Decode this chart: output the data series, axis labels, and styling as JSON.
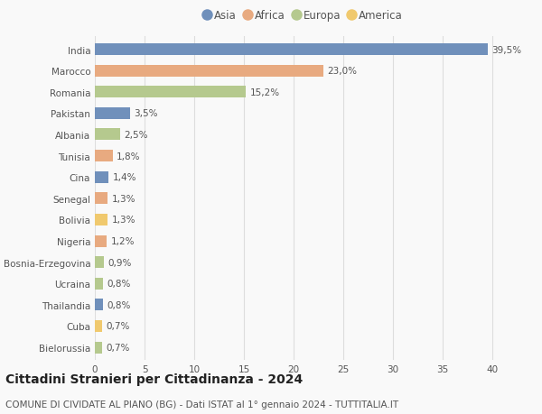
{
  "countries": [
    "India",
    "Marocco",
    "Romania",
    "Pakistan",
    "Albania",
    "Tunisia",
    "Cina",
    "Senegal",
    "Bolivia",
    "Nigeria",
    "Bosnia-Erzegovina",
    "Ucraina",
    "Thailandia",
    "Cuba",
    "Bielorussia"
  ],
  "values": [
    39.5,
    23.0,
    15.2,
    3.5,
    2.5,
    1.8,
    1.4,
    1.3,
    1.3,
    1.2,
    0.9,
    0.8,
    0.8,
    0.7,
    0.7
  ],
  "labels": [
    "39,5%",
    "23,0%",
    "15,2%",
    "3,5%",
    "2,5%",
    "1,8%",
    "1,4%",
    "1,3%",
    "1,3%",
    "1,2%",
    "0,9%",
    "0,8%",
    "0,8%",
    "0,7%",
    "0,7%"
  ],
  "continents": [
    "Asia",
    "Africa",
    "Europa",
    "Asia",
    "Europa",
    "Africa",
    "Asia",
    "Africa",
    "America",
    "Africa",
    "Europa",
    "Europa",
    "Asia",
    "America",
    "Europa"
  ],
  "continent_colors": {
    "Asia": "#7090bb",
    "Africa": "#e8aa80",
    "Europa": "#b5c98e",
    "America": "#f0c96e"
  },
  "legend_order": [
    "Asia",
    "Africa",
    "Europa",
    "America"
  ],
  "xlim": [
    0,
    42
  ],
  "xticks": [
    0,
    5,
    10,
    15,
    20,
    25,
    30,
    35,
    40
  ],
  "title": "Cittadini Stranieri per Cittadinanza - 2024",
  "subtitle": "COMUNE DI CIVIDATE AL PIANO (BG) - Dati ISTAT al 1° gennaio 2024 - TUTTITALIA.IT",
  "background_color": "#f9f9f9",
  "grid_color": "#dddddd",
  "bar_height": 0.55,
  "label_fontsize": 7.5,
  "title_fontsize": 10,
  "subtitle_fontsize": 7.5,
  "ytick_fontsize": 7.5,
  "xtick_fontsize": 7.5,
  "legend_fontsize": 8.5
}
